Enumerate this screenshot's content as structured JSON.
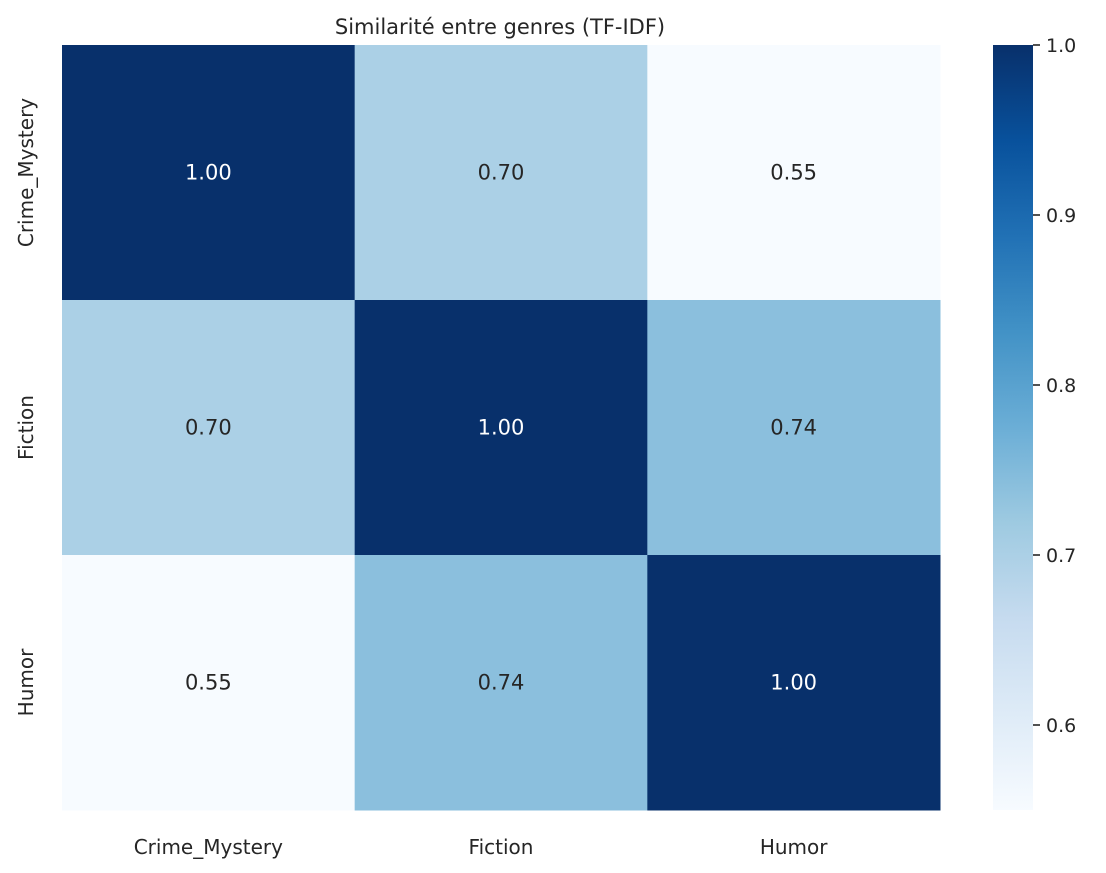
{
  "chart_data": {
    "type": "heatmap",
    "title": "Similarité entre genres (TF-IDF)",
    "xlabel": "",
    "ylabel": "",
    "x_categories": [
      "Crime_Mystery",
      "Fiction",
      "Humor"
    ],
    "y_categories": [
      "Crime_Mystery",
      "Fiction",
      "Humor"
    ],
    "values": [
      [
        1.0,
        0.7,
        0.55
      ],
      [
        0.7,
        1.0,
        0.74
      ],
      [
        0.55,
        0.74,
        1.0
      ]
    ],
    "annotations": [
      [
        "1.00",
        "0.70",
        "0.55"
      ],
      [
        "0.70",
        "1.00",
        "0.74"
      ],
      [
        "0.55",
        "0.74",
        "1.00"
      ]
    ],
    "colormap": "Blues",
    "vmin": 0.55,
    "vmax": 1.0,
    "colorbar": {
      "ticks": [
        0.6,
        0.7,
        0.8,
        0.9,
        1.0
      ],
      "tick_labels": [
        "0.6",
        "0.7",
        "0.8",
        "0.9",
        "1.0"
      ],
      "placement": "right"
    },
    "grid": false
  }
}
